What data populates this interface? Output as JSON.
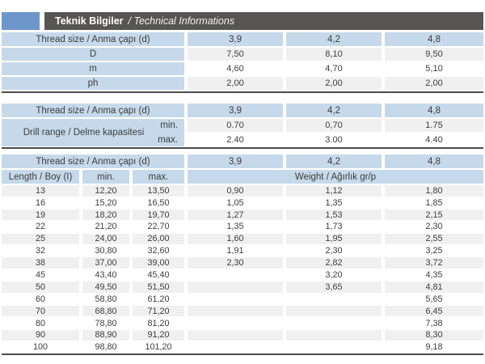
{
  "title": {
    "bold": "Teknik Bilgiler",
    "italic": "/ Technical Informations"
  },
  "colors": {
    "accent_blue": "#6d97cb",
    "bar_gray": "#575553",
    "header_blue": "#c6d9ea",
    "row_shade": "#f0f0f0",
    "border_dark": "#4b4b4b"
  },
  "table1": {
    "header_label": "Thread size / Anma çapı (d)",
    "sizes": [
      "3,9",
      "4,2",
      "4,8"
    ],
    "rows": [
      {
        "cells": [
          "D",
          "7,50",
          "8,10",
          "9,50"
        ]
      },
      {
        "cells": [
          "m",
          "4,60",
          "4,70",
          "5,10"
        ]
      },
      {
        "cells": [
          "ph",
          "2,00",
          "2,00",
          "2,00"
        ]
      }
    ]
  },
  "table2": {
    "header_label": "Thread size / Anma çapı (d)",
    "sizes": [
      "3,9",
      "4,2",
      "4,8"
    ],
    "row_label": "Drill range / Delme kapasitesi",
    "min_label": "min.",
    "max_label": "max.",
    "min_values": [
      "0.70",
      "0,70",
      "1.75"
    ],
    "max_values": [
      "2.40",
      "3.00",
      "4.40"
    ]
  },
  "table3": {
    "header_label": "Thread size / Anma çapı (d)",
    "sizes": [
      "3,9",
      "4,2",
      "4,8"
    ],
    "subheader": {
      "length": "Length / Boy (I)",
      "min": "min.",
      "max": "max.",
      "weight": "Weight / Ağırlık gr/p"
    },
    "rows": [
      {
        "cells": [
          "13",
          "12,20",
          "13,50",
          "0,90",
          "1,12",
          "1,80"
        ]
      },
      {
        "cells": [
          "16",
          "15,20",
          "16,50",
          "1,05",
          "1,35",
          "1,85"
        ]
      },
      {
        "cells": [
          "19",
          "18,20",
          "19,70",
          "1,27",
          "1,53",
          "2,15"
        ]
      },
      {
        "cells": [
          "22",
          "21,20",
          "22,70",
          "1,35",
          "1,73",
          "2,30"
        ]
      },
      {
        "cells": [
          "25",
          "24,00",
          "26,00",
          "1,60",
          "1,95",
          "2,55"
        ]
      },
      {
        "cells": [
          "32",
          "30,80",
          "32,60",
          "1,91",
          "2,30",
          "3,25"
        ]
      },
      {
        "cells": [
          "38",
          "37,00",
          "39,00",
          "2,30",
          "2,82",
          "3,72"
        ]
      },
      {
        "cells": [
          "45",
          "43,40",
          "45,40",
          "",
          "3,20",
          "4,35"
        ]
      },
      {
        "cells": [
          "50",
          "49,50",
          "51,50",
          "",
          "3,65",
          "4,81"
        ]
      },
      {
        "cells": [
          "60",
          "58,80",
          "61,20",
          "",
          "",
          "5,65"
        ]
      },
      {
        "cells": [
          "70",
          "68,80",
          "71,20",
          "",
          "",
          "6,45"
        ]
      },
      {
        "cells": [
          "80",
          "78,80",
          "81,20",
          "",
          "",
          "7,38"
        ]
      },
      {
        "cells": [
          "90",
          "88,90",
          "91,20",
          "",
          "",
          "8,30"
        ]
      },
      {
        "cells": [
          "100",
          "98,80",
          "101,20",
          "",
          "",
          "9,18"
        ]
      }
    ]
  }
}
